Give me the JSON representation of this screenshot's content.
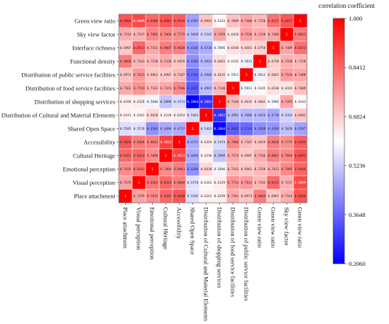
{
  "chart_data": {
    "type": "heatmap",
    "title": "",
    "xlabel": "",
    "ylabel": "",
    "colorbar": {
      "label": "correlation coefficient",
      "min": 0.206,
      "max": 1.0,
      "ticks": [
        1.0,
        0.8412,
        0.6824,
        0.5236,
        0.3648,
        0.206
      ],
      "tick_labels": [
        "1.000",
        "0.8412",
        "0.6824",
        "0.5236",
        "0.3648",
        "0.2060"
      ],
      "colors": {
        "low": "#0000ff",
        "mid": "#ffffff",
        "high": "#ff0000"
      }
    },
    "row_labels": [
      "Green view ratio",
      "Sky view factor",
      "Interface richness",
      "Functional density",
      "Distribution of public service facilities",
      "Distribution of food service facilities",
      "Distribution of shopping services",
      "Distribution of Cultural and Material Elements",
      "Shared Open Space",
      "Accessibility",
      "Cultural Heritage",
      "Emotional perception",
      "Visual perception",
      "Place attachment"
    ],
    "col_labels": [
      "Place attachment",
      "Visual perception",
      "Emotional perception",
      "Cultural Heritage",
      "Accessibility",
      "Shared Open Space",
      "Distribution of Cultural and Material Elements",
      "Distribution of shopping services",
      "Distribution of food service facilities",
      "Distribution of public service facilities",
      "Green view ratio",
      "Green view ratio",
      "Sky view factor",
      "Green view ratio"
    ],
    "values": [
      [
        0.8666,
        0.8889,
        0.8406,
        0.8692,
        0.8549,
        0.4587,
        0.6942,
        0.6143,
        0.7009,
        0.7408,
        0.7158,
        0.8253,
        0.8657,
        1.0
      ],
      [
        0.7314,
        0.7237,
        0.7905,
        0.786,
        0.7775,
        0.5028,
        0.5342,
        0.7455,
        0.6426,
        0.7526,
        0.7328,
        0.7409,
        1.0,
        0.8053
      ],
      [
        0.6907,
        0.8411,
        0.7421,
        0.8067,
        0.8038,
        0.4384,
        0.473,
        0.5905,
        0.654,
        0.6681,
        0.675,
        1.0,
        0.7409,
        0.8253
      ],
      [
        0.8069,
        0.7163,
        0.7158,
        0.7336,
        0.6929,
        0.4269,
        0.4924,
        0.6601,
        0.6165,
        0.5813,
        1.0,
        0.675,
        0.7328,
        0.7158
      ],
      [
        0.6973,
        0.7631,
        0.6961,
        0.6907,
        0.7107,
        0.3743,
        0.4906,
        0.6635,
        0.5911,
        1.0,
        0.5813,
        0.6681,
        0.7526,
        0.7408
      ],
      [
        0.7361,
        0.7714,
        0.7163,
        0.7374,
        0.7906,
        0.3491,
        0.4992,
        0.714,
        1.0,
        0.5911,
        0.6165,
        0.654,
        0.6426,
        0.7009
      ],
      [
        0.6299,
        0.6329,
        0.5846,
        0.5099,
        0.5474,
        0.2064,
        0.2842,
        1.0,
        0.714,
        0.6635,
        0.6601,
        0.5905,
        0.7455,
        0.6143
      ],
      [
        0.6241,
        0.6162,
        0.6638,
        0.623,
        0.6354,
        0.5463,
        1.0,
        0.2842,
        0.4992,
        0.4906,
        0.4924,
        0.473,
        0.5342,
        0.6942
      ],
      [
        0.5505,
        0.557,
        0.4304,
        0.4694,
        0.4737,
        1.0,
        0.5463,
        0.2064,
        0.3491,
        0.3743,
        0.4269,
        0.4384,
        0.5028,
        0.4587
      ],
      [
        0.866,
        0.8068,
        0.8041,
        0.9023,
        1.0,
        0.4737,
        0.6354,
        0.5474,
        0.7906,
        0.7107,
        0.6929,
        0.8038,
        0.7775,
        0.8549
      ],
      [
        0.8391,
        0.8414,
        0.786,
        1.0,
        0.9023,
        0.4694,
        0.623,
        0.5099,
        0.7374,
        0.6907,
        0.7336,
        0.8067,
        0.786,
        0.8692
      ],
      [
        0.7835,
        0.8161,
        1.0,
        0.786,
        0.8041,
        0.4304,
        0.6638,
        0.5846,
        0.7163,
        0.6961,
        0.7158,
        0.7421,
        0.7905,
        0.8406
      ],
      [
        0.7479,
        1.0,
        0.8161,
        0.8414,
        0.8068,
        0.557,
        0.6162,
        0.6329,
        0.7714,
        0.7631,
        0.7163,
        0.8411,
        0.7237,
        0.8889
      ],
      [
        1.0,
        0.7479,
        0.7835,
        0.8391,
        0.866,
        0.5505,
        0.6241,
        0.6299,
        0.7361,
        0.6973,
        0.8069,
        0.6907,
        0.7314,
        0.8666
      ]
    ]
  }
}
